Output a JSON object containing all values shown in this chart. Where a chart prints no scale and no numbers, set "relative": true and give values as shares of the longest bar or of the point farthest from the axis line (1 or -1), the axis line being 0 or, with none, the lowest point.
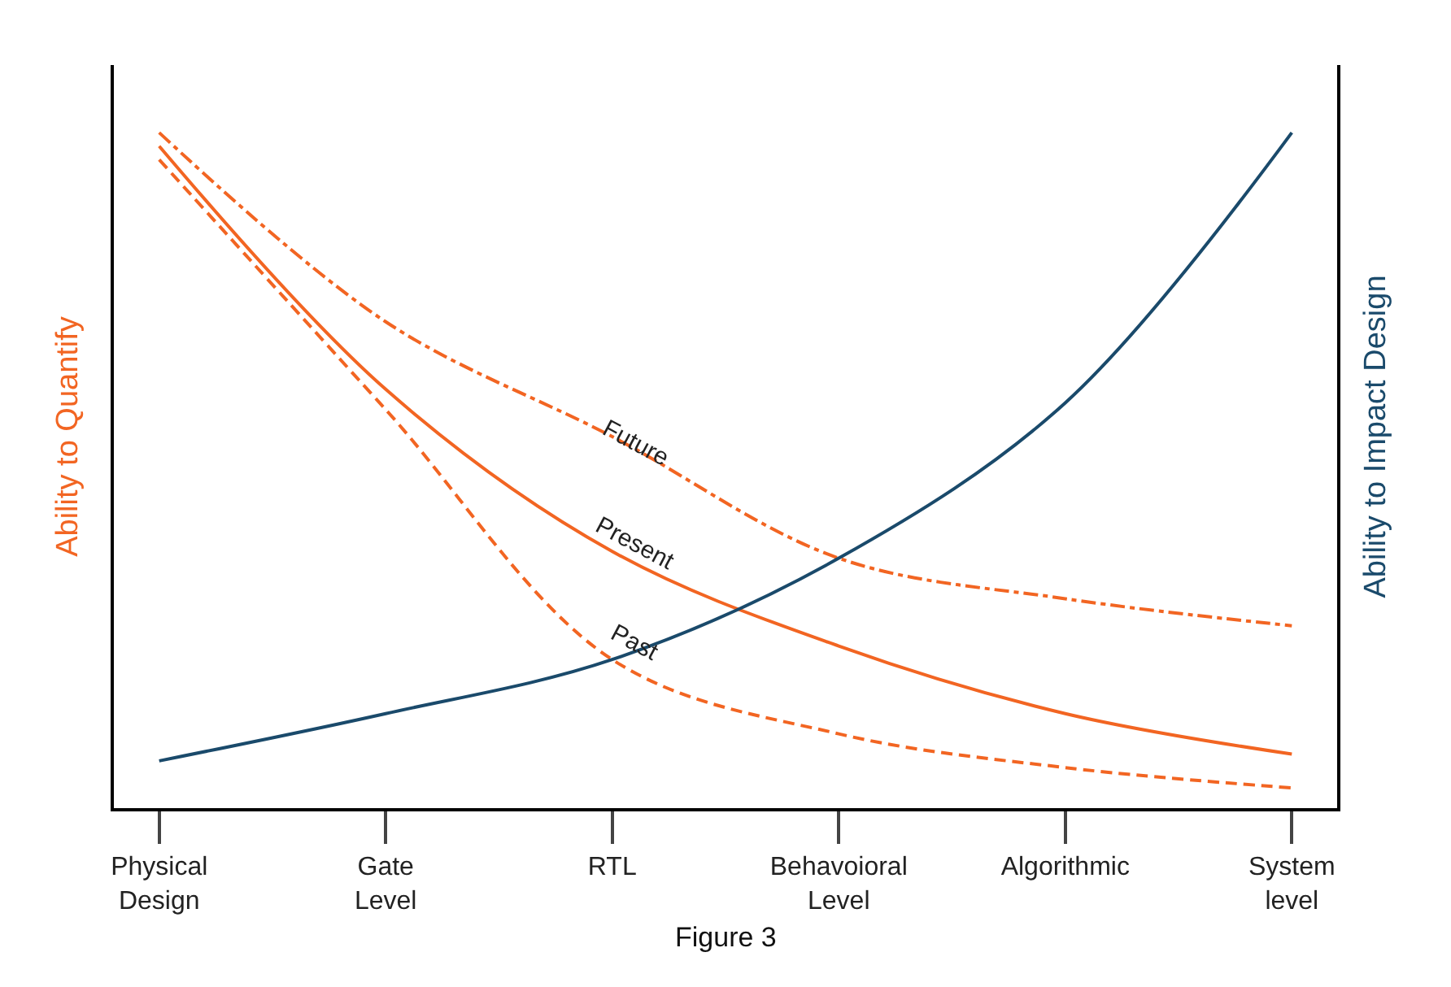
{
  "chart_data": {
    "type": "line",
    "relative": true,
    "ylabel": "Ability to Quantify",
    "y2label": "Ability to Impact Design",
    "categories": [
      "Physical\nDesign",
      "Gate\nLevel",
      "RTL",
      "Behavoioral\nLevel",
      "Algorithmic",
      "System\nlevel"
    ],
    "series": [
      {
        "name": "Future",
        "color": "#f26522",
        "line_style": "dashdot",
        "values": [
          1,
          0.72,
          0.55,
          0.37,
          0.31,
          0.27
        ]
      },
      {
        "name": "Present",
        "color": "#f26522",
        "line_style": "solid",
        "values": [
          0.98,
          0.62,
          0.38,
          0.24,
          0.14,
          0.08
        ]
      },
      {
        "name": "Past",
        "color": "#f26522",
        "line_style": "dashed",
        "values": [
          0.96,
          0.59,
          0.22,
          0.11,
          0.06,
          0.03
        ]
      },
      {
        "color": "#1a4a6b",
        "axis": "y2",
        "line_style": "solid",
        "values": [
          0.07,
          0.14,
          0.22,
          0.37,
          0.6,
          1
        ]
      }
    ],
    "annotations": [
      "Figure 3"
    ],
    "legend": false,
    "marker": "none"
  }
}
